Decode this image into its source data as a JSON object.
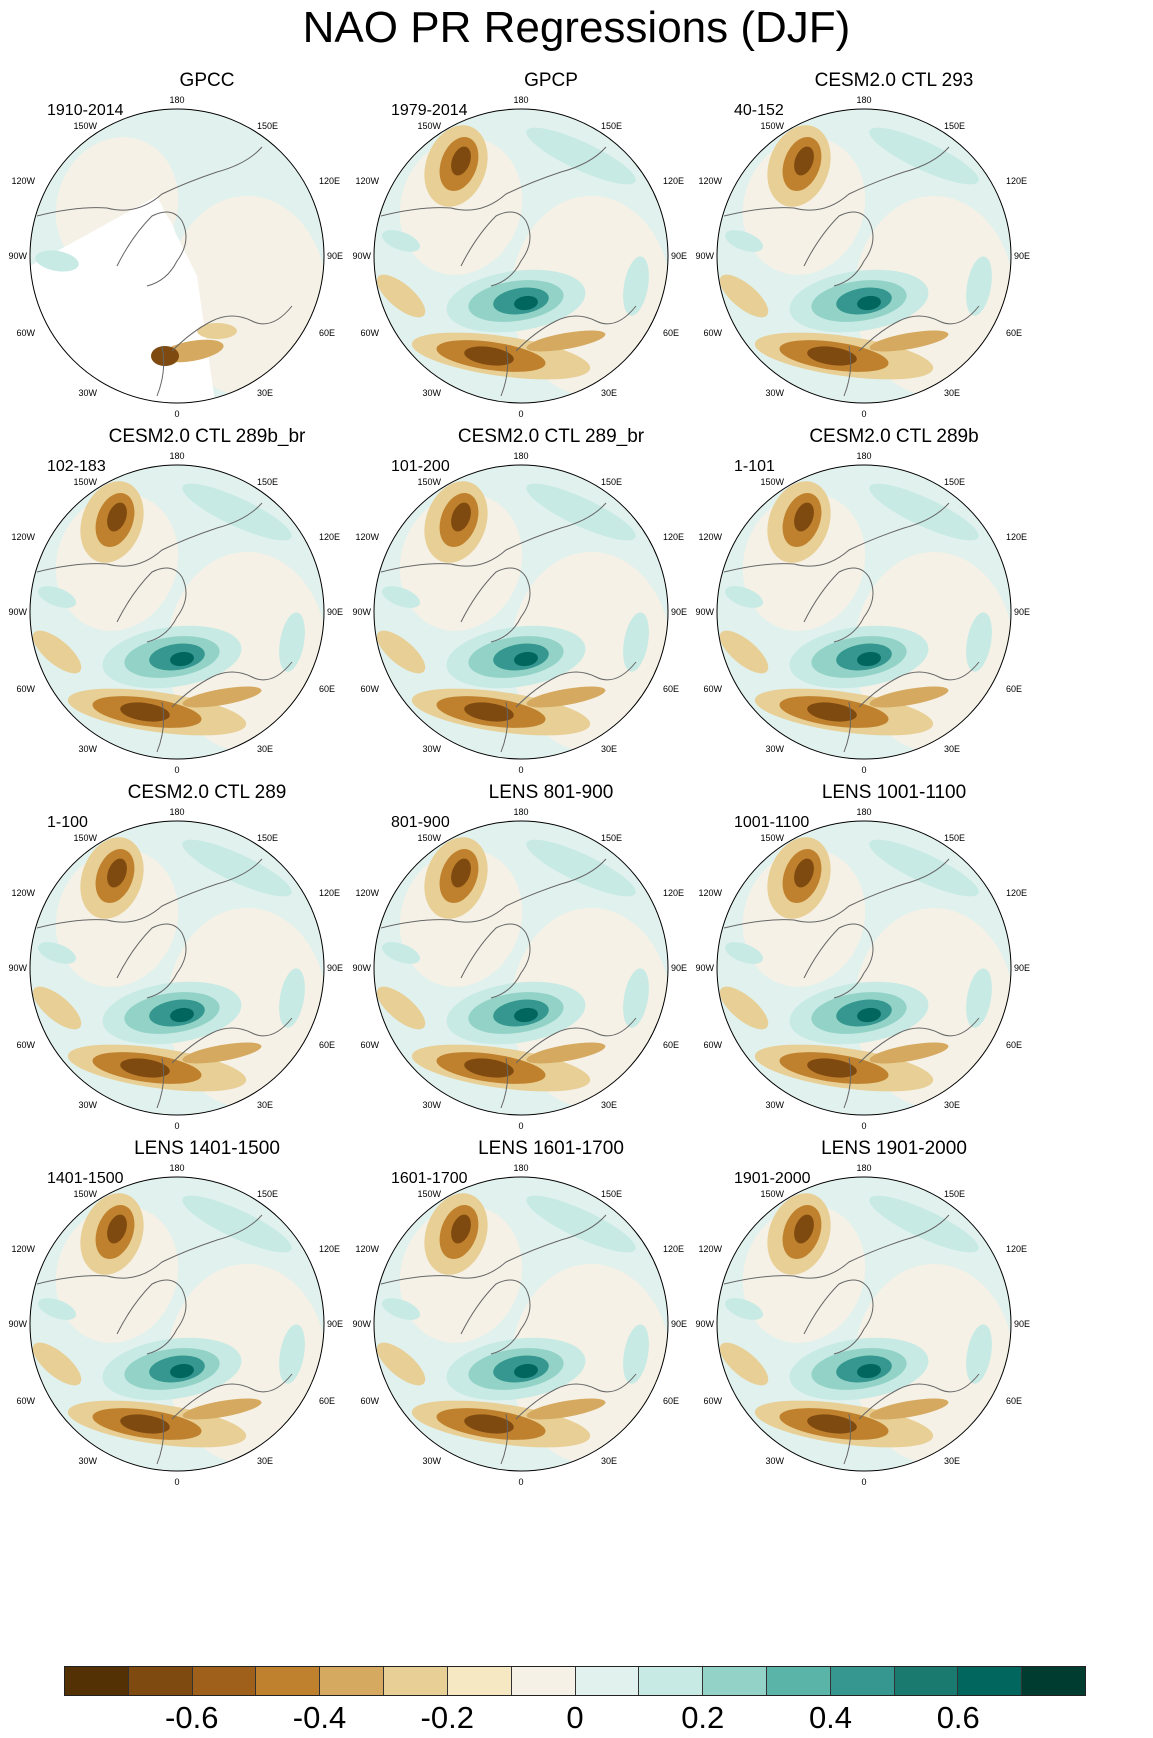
{
  "title": "NAO PR Regressions (DJF)",
  "longitude_labels": {
    "top": "180",
    "bottom": "0",
    "left_upper_1": "150W",
    "left_upper_2": "120W",
    "left_mid": "90W",
    "left_lower_1": "60W",
    "left_lower_2": "30W",
    "right_upper_1": "150E",
    "right_upper_2": "120E",
    "right_mid": "90E",
    "right_lower_1": "60E",
    "right_lower_2": "30E"
  },
  "panels": [
    {
      "title": "GPCC",
      "years": "1910-2014",
      "masked": true
    },
    {
      "title": "GPCP",
      "years": "1979-2014",
      "masked": false
    },
    {
      "title": "CESM2.0 CTL 293",
      "years": "40-152",
      "masked": false
    },
    {
      "title": "CESM2.0 CTL 289b_br",
      "years": "102-183",
      "masked": false
    },
    {
      "title": "CESM2.0 CTL 289_br",
      "years": "101-200",
      "masked": false
    },
    {
      "title": "CESM2.0 CTL 289b",
      "years": "1-101",
      "masked": false
    },
    {
      "title": "CESM2.0 CTL 289",
      "years": "1-100",
      "masked": false
    },
    {
      "title": "LENS 801-900",
      "years": "801-900",
      "masked": false
    },
    {
      "title": "LENS 1001-1100",
      "years": "1001-1100",
      "masked": false
    },
    {
      "title": "LENS 1401-1500",
      "years": "1401-1500",
      "masked": false
    },
    {
      "title": "LENS 1601-1700",
      "years": "1601-1700",
      "masked": false
    },
    {
      "title": "LENS 1901-2000",
      "years": "1901-2000",
      "masked": false
    }
  ],
  "colorbar": {
    "colors": [
      "#543005",
      "#7f4a10",
      "#9e601a",
      "#bf812d",
      "#d5aa60",
      "#e8cf95",
      "#f6e8c3",
      "#f5f1e6",
      "#e1f1ee",
      "#c7eae5",
      "#93d2c6",
      "#5ab4a7",
      "#35978f",
      "#1b7a70",
      "#01665e",
      "#003c30"
    ],
    "labels": [
      "-0.6",
      "-0.4",
      "-0.2",
      "0",
      "0.2",
      "0.4",
      "0.6"
    ],
    "label_values": [
      -0.6,
      -0.4,
      -0.2,
      0,
      0.2,
      0.4,
      0.6
    ],
    "min": -0.8,
    "max": 0.8
  }
}
